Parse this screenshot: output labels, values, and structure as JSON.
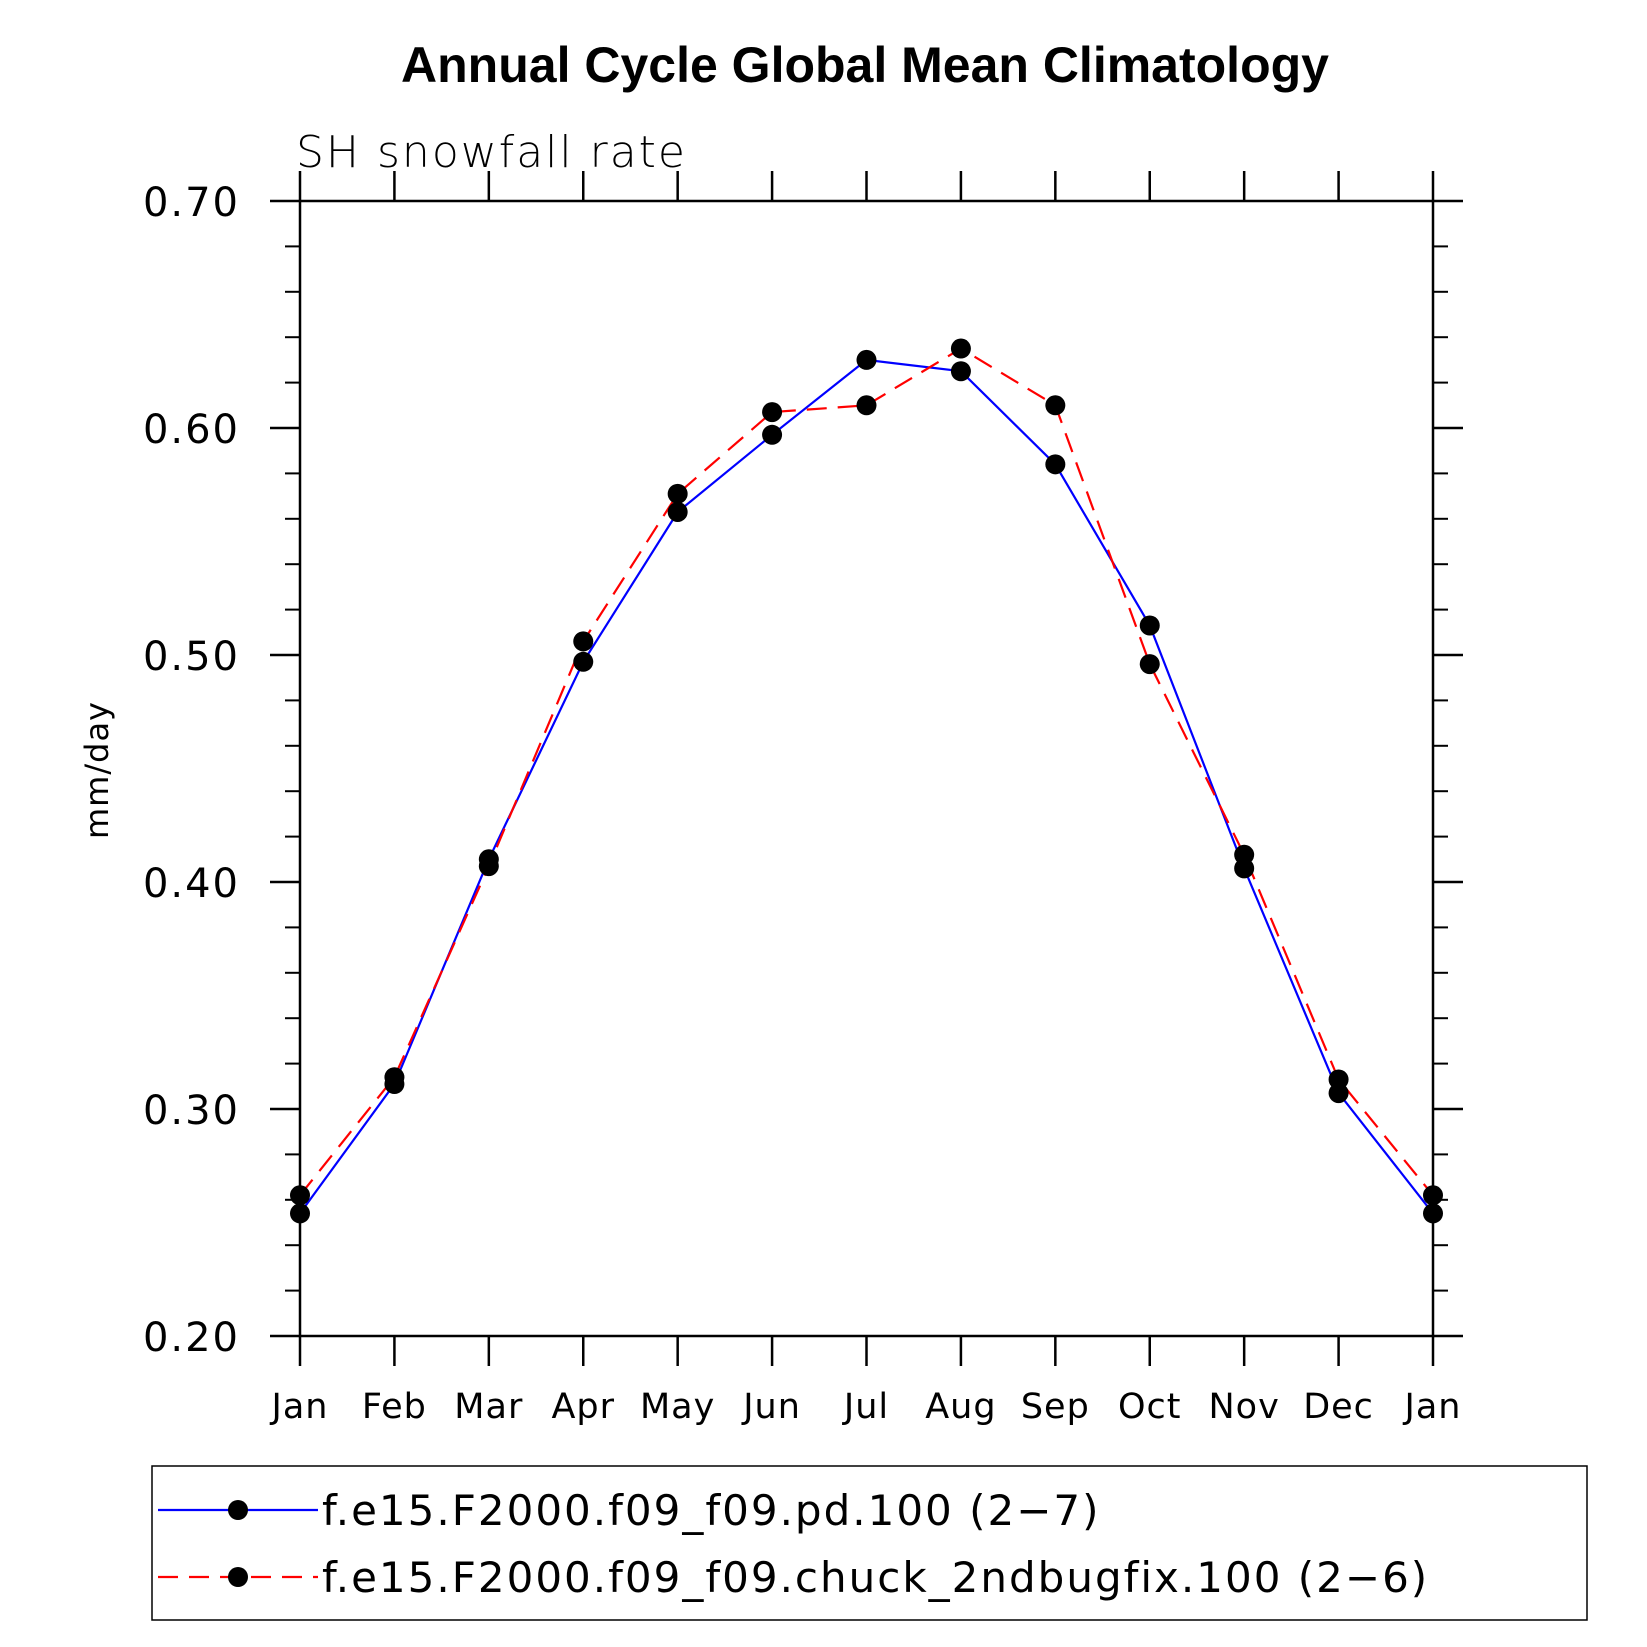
{
  "chart_data": {
    "type": "line",
    "title": "Annual Cycle Global Mean Climatology",
    "subtitle": "SH snowfall rate",
    "xlabel": "",
    "ylabel": "mm/day",
    "ylim": [
      0.2,
      0.7
    ],
    "yticks": [
      "0.20",
      "0.30",
      "0.40",
      "0.50",
      "0.60",
      "0.70"
    ],
    "categories": [
      "Jan",
      "Feb",
      "Mar",
      "Apr",
      "May",
      "Jun",
      "Jul",
      "Aug",
      "Sep",
      "Oct",
      "Nov",
      "Dec",
      "Jan"
    ],
    "grid": false,
    "legend_position": "bottom",
    "series": [
      {
        "name": "f.e15.F2000.f09_f09.pd.100 (2−7)",
        "color": "#0000ff",
        "style": "solid",
        "marker": "filled-circle",
        "values": [
          0.254,
          0.311,
          0.41,
          0.497,
          0.563,
          0.597,
          0.63,
          0.625,
          0.584,
          0.513,
          0.406,
          0.307,
          0.254
        ]
      },
      {
        "name": "f.e15.F2000.f09_f09.chuck_2ndbugfix.100 (2−6)",
        "color": "#ff0000",
        "style": "dashed",
        "marker": "filled-circle",
        "values": [
          0.262,
          0.314,
          0.407,
          0.506,
          0.571,
          0.607,
          0.61,
          0.635,
          0.61,
          0.496,
          0.412,
          0.313,
          0.262
        ]
      }
    ]
  }
}
